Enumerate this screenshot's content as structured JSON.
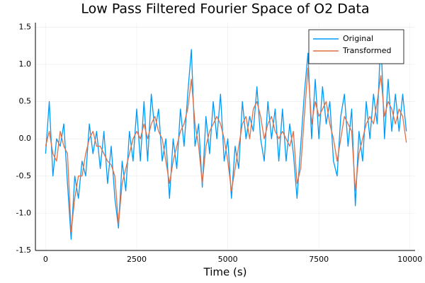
{
  "chart_data": {
    "type": "line",
    "title": "Low Pass Filtered Fourier Space of O2 Data",
    "x_label": "Time (s)",
    "x": [
      0,
      100,
      200,
      300,
      400,
      500,
      600,
      700,
      800,
      900,
      1000,
      1100,
      1200,
      1300,
      1400,
      1500,
      1600,
      1700,
      1800,
      1900,
      2000,
      2100,
      2200,
      2300,
      2400,
      2500,
      2600,
      2700,
      2800,
      2900,
      3000,
      3100,
      3200,
      3300,
      3400,
      3500,
      3600,
      3700,
      3800,
      3900,
      4000,
      4100,
      4200,
      4300,
      4400,
      4500,
      4600,
      4700,
      4800,
      4900,
      5000,
      5100,
      5200,
      5300,
      5400,
      5500,
      5600,
      5700,
      5800,
      5900,
      6000,
      6100,
      6200,
      6300,
      6400,
      6500,
      6600,
      6700,
      6800,
      6900,
      7000,
      7100,
      7200,
      7300,
      7400,
      7500,
      7600,
      7700,
      7800,
      7900,
      8000,
      8100,
      8200,
      8300,
      8400,
      8500,
      8600,
      8700,
      8800,
      8900,
      9000,
      9100,
      9200,
      9300,
      9400,
      9500,
      9600,
      9700,
      9800,
      9900
    ],
    "series": [
      {
        "name": "Original",
        "color": "#009af9",
        "values": [
          -0.2,
          0.5,
          -0.5,
          0.0,
          -0.1,
          0.2,
          -0.6,
          -1.35,
          -0.5,
          -0.8,
          -0.3,
          -0.5,
          0.2,
          -0.2,
          0.1,
          -0.4,
          0.1,
          -0.6,
          -0.1,
          -0.8,
          -1.2,
          -0.3,
          -0.7,
          0.1,
          -0.3,
          0.4,
          -0.3,
          0.5,
          -0.3,
          0.6,
          0.1,
          0.4,
          -0.3,
          0.0,
          -0.8,
          0.0,
          -0.4,
          0.4,
          -0.1,
          0.6,
          1.2,
          -0.1,
          0.2,
          -0.65,
          0.3,
          -0.2,
          0.5,
          0.0,
          0.6,
          -0.3,
          0.0,
          -0.8,
          -0.1,
          -0.4,
          0.5,
          0.0,
          0.3,
          0.1,
          0.7,
          0.0,
          -0.3,
          0.5,
          0.0,
          0.4,
          -0.3,
          0.4,
          -0.3,
          0.2,
          -0.2,
          -0.8,
          -0.1,
          0.6,
          1.15,
          0.0,
          0.8,
          0.0,
          0.7,
          0.2,
          0.5,
          -0.3,
          -0.5,
          0.3,
          0.6,
          -0.1,
          0.4,
          -0.9,
          0.1,
          -0.3,
          0.5,
          0.0,
          0.6,
          0.2,
          1.4,
          0.0,
          0.8,
          0.1,
          0.6,
          0.1,
          0.6,
          0.1
        ]
      },
      {
        "name": "Transformed",
        "color": "#e26f46",
        "values": [
          -0.1,
          0.1,
          -0.2,
          -0.3,
          0.1,
          -0.1,
          -0.2,
          -1.25,
          -0.8,
          -0.5,
          -0.5,
          -0.2,
          0.0,
          0.1,
          -0.1,
          -0.1,
          -0.2,
          -0.3,
          -0.35,
          -0.5,
          -1.15,
          -0.6,
          -0.4,
          -0.2,
          0.0,
          0.1,
          0.0,
          0.2,
          0.0,
          0.2,
          0.3,
          0.1,
          0.0,
          -0.3,
          -0.6,
          -0.3,
          -0.1,
          0.1,
          0.2,
          0.4,
          0.8,
          0.2,
          -0.1,
          -0.6,
          -0.1,
          0.1,
          0.2,
          0.3,
          0.2,
          0.0,
          -0.3,
          -0.7,
          -0.4,
          -0.1,
          0.2,
          0.3,
          0.0,
          0.4,
          0.5,
          0.3,
          0.0,
          0.2,
          0.3,
          0.1,
          0.0,
          0.1,
          0.0,
          -0.1,
          0.1,
          -0.6,
          -0.4,
          0.3,
          0.95,
          0.2,
          0.5,
          0.3,
          0.4,
          0.5,
          0.2,
          0.0,
          -0.3,
          0.0,
          0.3,
          0.2,
          0.1,
          -0.7,
          -0.2,
          0.0,
          0.2,
          0.3,
          0.2,
          0.5,
          0.85,
          0.3,
          0.5,
          0.4,
          0.2,
          0.4,
          0.3,
          -0.05
        ]
      }
    ],
    "xlim": [
      -280,
      10140
    ],
    "ylim": [
      -1.5,
      1.56
    ],
    "xticks": [
      0,
      2500,
      5000,
      7500,
      10000
    ],
    "yticks": [
      {
        "value": -1.5,
        "label": "-1.5"
      },
      {
        "value": -1,
        "label": "-1.0"
      },
      {
        "value": -0.5,
        "label": "-0.5"
      },
      {
        "value": 0,
        "label": "0.0"
      },
      {
        "value": 0.5,
        "label": "0.5"
      },
      {
        "value": 1,
        "label": "1.0"
      },
      {
        "value": 1.5,
        "label": "1.5"
      }
    ],
    "grid": true,
    "legend": "top-right"
  }
}
